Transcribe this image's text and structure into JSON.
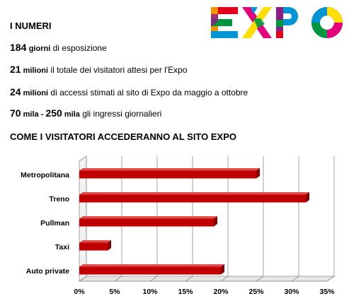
{
  "section_numbers": {
    "title": "I NUMERI",
    "stats": [
      {
        "number": "184",
        "unit": "giorni",
        "text": " di esposizione"
      },
      {
        "number": "21",
        "unit": " milioni",
        "text": " il totale dei visitatori attesi per l'Expo"
      },
      {
        "number": "24",
        "unit": " milioni",
        "text": " di accessi stimati al sito di Expo da maggio a ottobre"
      },
      {
        "number": "70",
        "unit": " mila - ",
        "number2": "250",
        "unit2": " mila",
        "text": " gli ingressi giornalieri"
      }
    ]
  },
  "section_chart": {
    "title": "COME I VISITATORI ACCEDERANNO AL SITO EXPO"
  },
  "logo": {
    "text": "EXPO",
    "colors": [
      "#e2001a",
      "#f39200",
      "#ffde00",
      "#009640",
      "#0096d6",
      "#8c1d82",
      "#e5007d",
      "#000000"
    ]
  },
  "chart_data": {
    "type": "bar",
    "orientation": "horizontal",
    "categories": [
      "Metropolitana",
      "Treno",
      "Pullman",
      "Taxi",
      "Auto private"
    ],
    "values": [
      25,
      32,
      19,
      4,
      20
    ],
    "unit": "%",
    "xlim": [
      0,
      35
    ],
    "xticks": [
      "0%",
      "5%",
      "10%",
      "15%",
      "20%",
      "25%",
      "30%",
      "35%"
    ],
    "grid": true,
    "bar_color": "#c00000",
    "style": "3d"
  }
}
